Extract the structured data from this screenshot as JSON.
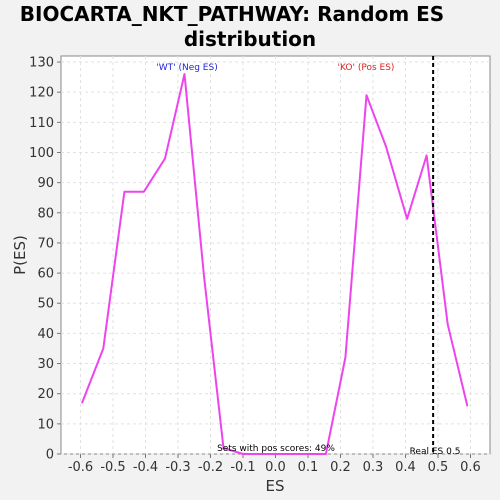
{
  "chart_data": {
    "type": "line",
    "title_lines": [
      "BIOCARTA_NKT_PATHWAY: Random ES",
      "distribution"
    ],
    "xlabel": "ES",
    "ylabel": "P(ES)",
    "xlim": [
      -0.66,
      0.66
    ],
    "ylim": [
      0,
      132
    ],
    "x_ticks": [
      -0.6,
      -0.5,
      -0.4,
      -0.3,
      -0.2,
      -0.1,
      0.0,
      0.1,
      0.2,
      0.3,
      0.4,
      0.5,
      0.6
    ],
    "x_tick_labels": [
      "-0.6",
      "-0.5",
      "-0.4",
      "-0.3",
      "-0.2",
      "-0.1",
      "0.0",
      "0.1",
      "0.2",
      "0.3",
      "0.4",
      "0.5",
      "0.6"
    ],
    "y_ticks": [
      0,
      10,
      20,
      30,
      40,
      50,
      60,
      70,
      80,
      90,
      100,
      110,
      120,
      130
    ],
    "y_tick_labels": [
      "0",
      "10",
      "20",
      "30",
      "40",
      "50",
      "60",
      "70",
      "80",
      "90",
      "100",
      "110",
      "120",
      "130"
    ],
    "grid": true,
    "series": [
      {
        "color": "#ee44ee",
        "x": [
          -0.595,
          -0.53,
          -0.465,
          -0.405,
          -0.34,
          -0.28,
          -0.22,
          -0.16,
          -0.1,
          -0.04,
          0.02,
          0.08,
          0.155,
          0.215,
          0.28,
          0.34,
          0.405,
          0.465,
          0.53,
          0.59
        ],
        "y": [
          17,
          35,
          87,
          87,
          98,
          126,
          59,
          2,
          0,
          0,
          0,
          0,
          0,
          32,
          119,
          102,
          78,
          99,
          43,
          16
        ]
      }
    ],
    "real_es": 0.485,
    "annotations": {
      "wt_label": "'WT' (Neg ES)",
      "ko_label": "'KO' (Pos ES)",
      "pos_scores": "Sets with pos scores: 49%",
      "real_es_label": "Real ES 0.5"
    },
    "colors": {
      "wt": "#2222dd",
      "ko": "#dd2222",
      "plot_bg": "#ffffff",
      "page_bg": "#f2f2f2"
    }
  }
}
